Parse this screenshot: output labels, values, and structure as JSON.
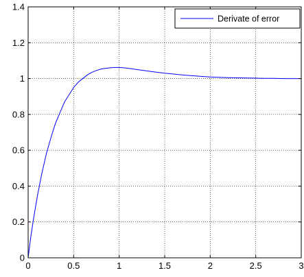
{
  "chart_data": {
    "type": "line",
    "xlim": [
      0,
      3
    ],
    "ylim": [
      0,
      1.4
    ],
    "xticks": [
      0,
      0.5,
      1,
      1.5,
      2,
      2.5,
      3
    ],
    "yticks": [
      0,
      0.2,
      0.4,
      0.6,
      0.8,
      1,
      1.2,
      1.4
    ],
    "xtick_labels": [
      "0",
      "0.5",
      "1",
      "1.5",
      "2",
      "2.5",
      "3"
    ],
    "ytick_labels": [
      "0",
      "0.2",
      "0.4",
      "0.6",
      "0.8",
      "1",
      "1.2",
      "1.4"
    ],
    "grid": true,
    "grid_style": "dotted",
    "legend_position": "top-right",
    "series": [
      {
        "name": "Derivate of error",
        "color": "#0000ff",
        "x": [
          0,
          0.03,
          0.06,
          0.1,
          0.15,
          0.2,
          0.25,
          0.3,
          0.35,
          0.4,
          0.45,
          0.5,
          0.55,
          0.6,
          0.65,
          0.7,
          0.75,
          0.8,
          0.85,
          0.9,
          0.95,
          1.0,
          1.05,
          1.1,
          1.2,
          1.3,
          1.4,
          1.5,
          1.6,
          1.7,
          1.8,
          1.9,
          2.0,
          2.1,
          2.2,
          2.3,
          2.4,
          2.5,
          2.6,
          2.7,
          2.8,
          2.9,
          3.0
        ],
        "y": [
          0.0,
          0.12,
          0.22,
          0.34,
          0.47,
          0.58,
          0.67,
          0.75,
          0.81,
          0.87,
          0.91,
          0.95,
          0.98,
          1.0,
          1.02,
          1.035,
          1.045,
          1.053,
          1.057,
          1.06,
          1.062,
          1.062,
          1.06,
          1.057,
          1.05,
          1.043,
          1.036,
          1.03,
          1.025,
          1.02,
          1.016,
          1.012,
          1.009,
          1.007,
          1.005,
          1.004,
          1.003,
          1.002,
          1.001,
          1.001,
          1.0,
          1.0,
          1.0
        ]
      }
    ]
  }
}
